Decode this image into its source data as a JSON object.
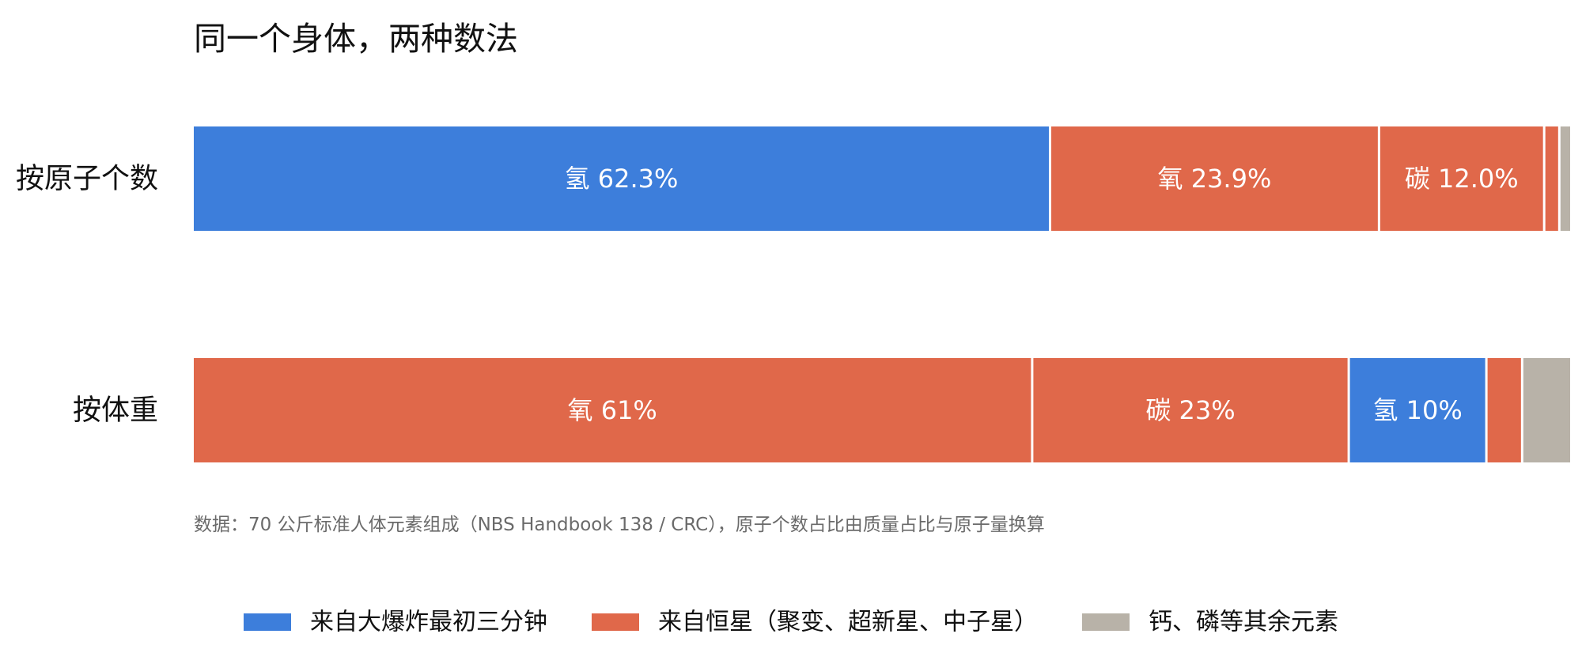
{
  "colors": {
    "bigbang": "#3d7edb",
    "stars": "#e0684a",
    "other": "#b8b2a8",
    "text": "#111111",
    "note": "#6a6a6a",
    "segment_label": "#ffffff"
  },
  "chart_data": {
    "type": "bar",
    "orientation": "horizontal",
    "stacked": true,
    "title": "同一个身体，两种数法",
    "xlim": [
      0,
      100
    ],
    "grid": false,
    "legend_position": "bottom-center",
    "rows": [
      {
        "category": "按原子个数",
        "segments": [
          {
            "value": 62.3,
            "group": "bigbang",
            "label": "氢 62.3%"
          },
          {
            "value": 23.9,
            "group": "stars",
            "label": "氧 23.9%"
          },
          {
            "value": 12.0,
            "group": "stars",
            "label": "碳 12.0%"
          },
          {
            "value": 1.1,
            "group": "stars",
            "label": ""
          },
          {
            "value": 0.7,
            "group": "other",
            "label": ""
          }
        ]
      },
      {
        "category": "按体重",
        "segments": [
          {
            "value": 61,
            "group": "stars",
            "label": "氧 61%"
          },
          {
            "value": 23,
            "group": "stars",
            "label": "碳 23%"
          },
          {
            "value": 10,
            "group": "bigbang",
            "label": "氢 10%"
          },
          {
            "value": 2.6,
            "group": "stars",
            "label": ""
          },
          {
            "value": 3.4,
            "group": "other",
            "label": ""
          }
        ]
      }
    ],
    "legend": [
      {
        "group": "bigbang",
        "label": "来自大爆炸最初三分钟"
      },
      {
        "group": "stars",
        "label": "来自恒星（聚变、超新星、中子星）"
      },
      {
        "group": "other",
        "label": "钙、磷等其余元素"
      }
    ],
    "note": "数据：70 公斤标准人体元素组成（NBS Handbook 138 / CRC），原子个数占比由质量占比与原子量换算"
  }
}
